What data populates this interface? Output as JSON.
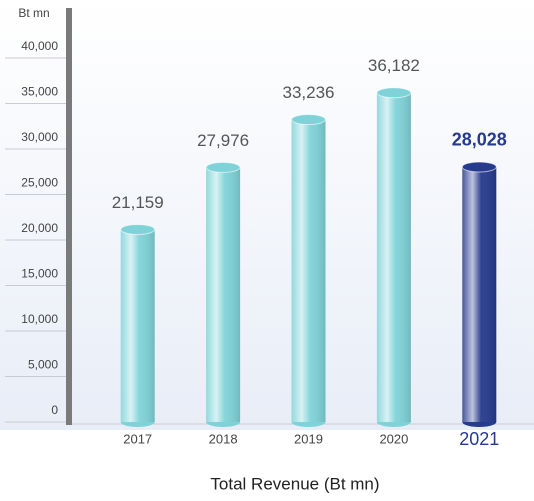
{
  "chart_data": {
    "type": "bar",
    "title": "Total Revenue (Bt mn)",
    "y_label": "Bt mn",
    "categories": [
      "2017",
      "2018",
      "2019",
      "2020",
      "2021"
    ],
    "values": [
      21159,
      27976,
      33236,
      36182,
      28028
    ],
    "value_labels": [
      "21,159",
      "27,976",
      "33,236",
      "36,182",
      "28,028"
    ],
    "color": "#7fd3d8",
    "colors": [
      "#7fd3d8",
      "#7fd3d8",
      "#7fd3d8",
      "#7fd3d8",
      "#263a8e"
    ],
    "ylim": [
      0,
      40000
    ],
    "yticks": [
      0,
      {
        "value": 5000,
        "label": "5,000"
      },
      {
        "value": 10000,
        "label": "10,000"
      },
      {
        "value": 15000,
        "label": "15,000"
      },
      {
        "value": 20000,
        "label": "20,000"
      },
      {
        "value": 25000,
        "label": "25,000"
      },
      {
        "value": 30000,
        "label": "30,000"
      },
      {
        "value": 35000,
        "label": "35,000"
      },
      {
        "value": 40000,
        "label": "40,000"
      }
    ]
  }
}
